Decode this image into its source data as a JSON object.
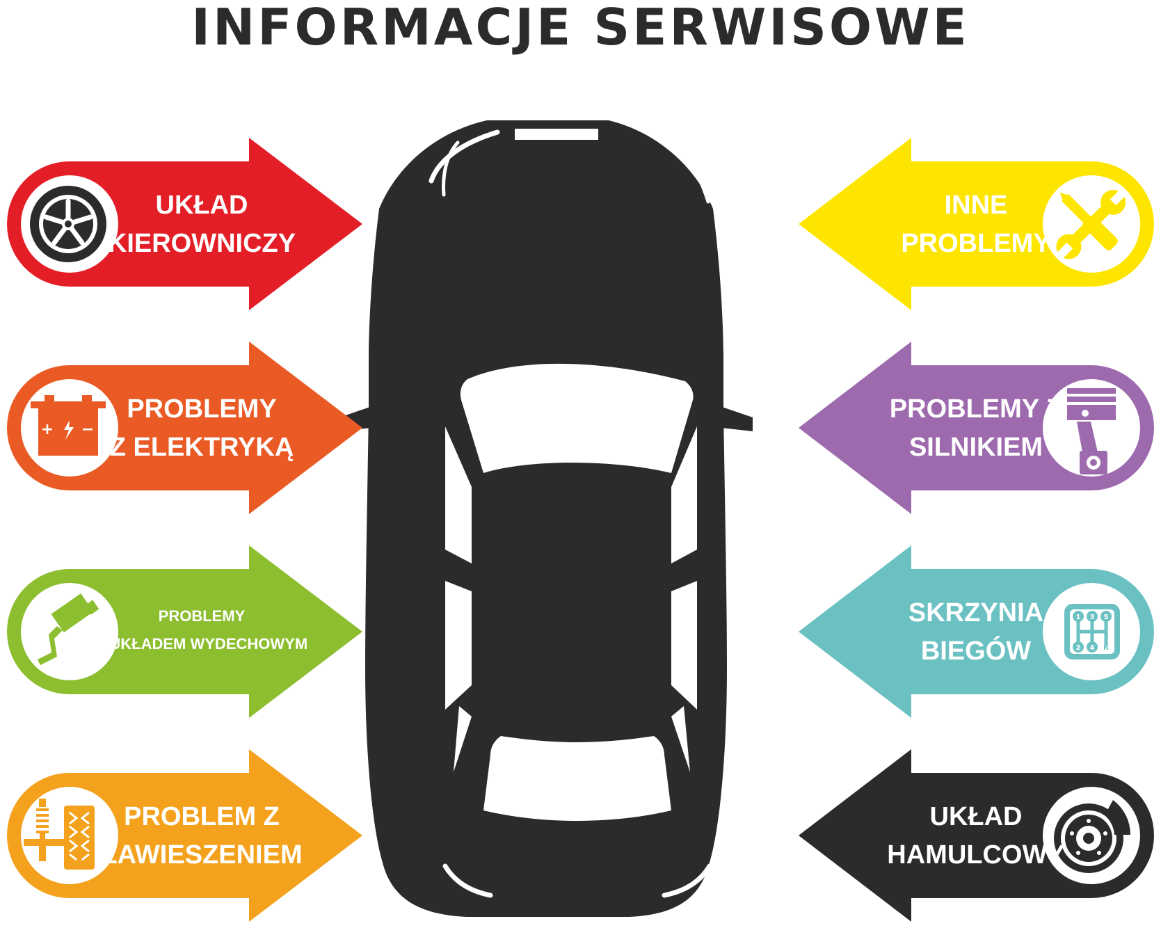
{
  "title": "Informacje serwisowe",
  "categories": [
    {
      "id": "steering",
      "side": "left",
      "line1": "UKŁAD",
      "line2": "KIEROWNICZY",
      "color": "#e31e26",
      "icon": "wheel-icon"
    },
    {
      "id": "electrical",
      "side": "left",
      "line1": "PROBLEMY",
      "line2": "Z ELEKTRYKĄ",
      "color": "#e95a25",
      "icon": "battery-icon"
    },
    {
      "id": "exhaust",
      "side": "left",
      "line1": "PROBLEMY",
      "line2": "Z UKŁADEM WYDECHOWYM",
      "color": "#8cbe2f",
      "icon": "exhaust-icon"
    },
    {
      "id": "suspension",
      "side": "left",
      "line1": "PROBLEM Z",
      "line2": "ZAWIESZENIEM",
      "color": "#f4a21d",
      "icon": "suspension-icon"
    },
    {
      "id": "other",
      "side": "right",
      "line1": "INNE",
      "line2": "PROBLEMY",
      "color": "#fde500",
      "icon": "tools-icon"
    },
    {
      "id": "engine",
      "side": "right",
      "line1": "PROBLEMY Z",
      "line2": "SILNIKIEM",
      "color": "#9c6aad",
      "icon": "piston-icon"
    },
    {
      "id": "gearbox",
      "side": "right",
      "line1": "SKRZYNIA",
      "line2": "BIEGÓW",
      "color": "#6bc1c2",
      "icon": "gearshift-icon"
    },
    {
      "id": "brakes",
      "side": "right",
      "line1": "UKŁAD",
      "line2": "HAMULCOWY",
      "color": "#2b2b2b",
      "icon": "brake-disc-icon"
    }
  ],
  "gearbox_icon_labels": [
    "1",
    "3",
    "5",
    "2",
    "4",
    "R"
  ],
  "battery_icon_signs": {
    "plus": "+",
    "minus": "−"
  }
}
